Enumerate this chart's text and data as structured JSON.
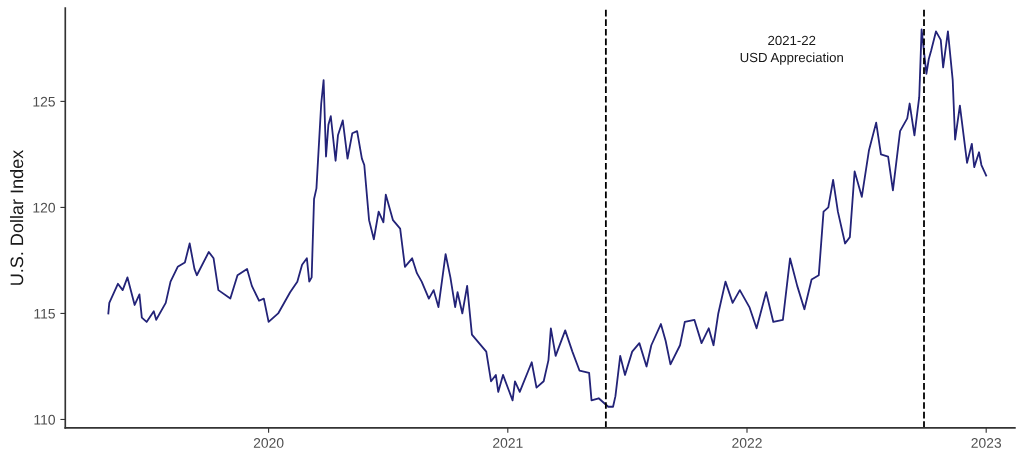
{
  "chart_data": {
    "type": "line",
    "ylabel": "U.S. Dollar Index",
    "annotations": [
      "2021-22\nUSD Appreciation"
    ],
    "xlim": [
      2019.15,
      2023.12
    ],
    "xticks": [
      2020,
      2021,
      2022,
      2023
    ],
    "ylim": [
      109.6,
      129.4
    ],
    "yticks": [
      110,
      115,
      120,
      125
    ],
    "grid": false,
    "line_style": "solid",
    "ref_lines": [
      {
        "axis": "x",
        "value": 2021.41,
        "line_style": "dashed",
        "color": "#000000"
      },
      {
        "axis": "x",
        "value": 2022.74,
        "line_style": "dashed",
        "color": "#000000"
      }
    ],
    "series": [
      {
        "color": "#232378",
        "x": [
          2019.33,
          2019.334,
          2019.37,
          2019.39,
          2019.41,
          2019.44,
          2019.46,
          2019.47,
          2019.49,
          2019.52,
          2019.53,
          2019.57,
          2019.59,
          2019.62,
          2019.65,
          2019.67,
          2019.69,
          2019.7,
          2019.75,
          2019.77,
          2019.79,
          2019.84,
          2019.87,
          2019.91,
          2019.93,
          2019.96,
          2019.98,
          2020.0,
          2020.04,
          2020.09,
          2020.12,
          2020.14,
          2020.16,
          2020.17,
          2020.18,
          2020.19,
          2020.2,
          2020.22,
          2020.23,
          2020.24,
          2020.25,
          2020.26,
          2020.28,
          2020.29,
          2020.31,
          2020.33,
          2020.35,
          2020.37,
          2020.39,
          2020.4,
          2020.42,
          2020.44,
          2020.46,
          2020.48,
          2020.49,
          2020.52,
          2020.55,
          2020.57,
          2020.6,
          2020.62,
          2020.64,
          2020.67,
          2020.69,
          2020.71,
          2020.74,
          2020.76,
          2020.78,
          2020.79,
          2020.81,
          2020.83,
          2020.85,
          2020.88,
          2020.91,
          2020.93,
          2020.95,
          2020.96,
          2020.98,
          2021.02,
          2021.03,
          2021.05,
          2021.1,
          2021.12,
          2021.15,
          2021.17,
          2021.18,
          2021.2,
          2021.24,
          2021.27,
          2021.3,
          2021.34,
          2021.35,
          2021.38,
          2021.42,
          2021.44,
          2021.45,
          2021.47,
          2021.49,
          2021.52,
          2021.55,
          2021.58,
          2021.6,
          2021.64,
          2021.66,
          2021.68,
          2021.72,
          2021.74,
          2021.78,
          2021.81,
          2021.84,
          2021.86,
          2021.88,
          2021.91,
          2021.94,
          2021.97,
          2022.01,
          2022.04,
          2022.08,
          2022.11,
          2022.15,
          2022.18,
          2022.21,
          2022.24,
          2022.27,
          2022.3,
          2022.32,
          2022.34,
          2022.36,
          2022.38,
          2022.41,
          2022.43,
          2022.45,
          2022.48,
          2022.51,
          2022.54,
          2022.56,
          2022.59,
          2022.61,
          2022.64,
          2022.67,
          2022.68,
          2022.7,
          2022.72,
          2022.73,
          2022.75,
          2022.76,
          2022.77,
          2022.79,
          2022.81,
          2022.82,
          2022.84,
          2022.86,
          2022.87,
          2022.89,
          2022.92,
          2022.94,
          2022.95,
          2022.97,
          2022.98,
          2023.0
        ],
        "values": [
          115.0,
          115.5,
          116.4,
          116.1,
          116.7,
          115.4,
          115.9,
          114.8,
          114.6,
          115.1,
          114.7,
          115.5,
          116.5,
          117.2,
          117.4,
          118.3,
          117.1,
          116.8,
          117.9,
          117.6,
          116.1,
          115.7,
          116.8,
          117.1,
          116.3,
          115.6,
          115.7,
          114.6,
          115.0,
          116.0,
          116.5,
          117.3,
          117.6,
          116.5,
          116.7,
          120.4,
          120.9,
          124.9,
          126.0,
          122.4,
          123.9,
          124.3,
          122.2,
          123.4,
          124.1,
          122.3,
          123.5,
          123.6,
          122.3,
          122.0,
          119.4,
          118.5,
          119.8,
          119.3,
          120.6,
          119.4,
          119.0,
          117.2,
          117.6,
          116.9,
          116.5,
          115.7,
          116.1,
          115.3,
          117.8,
          116.7,
          115.3,
          116.0,
          115.0,
          116.3,
          114.0,
          113.6,
          113.2,
          111.8,
          112.1,
          111.3,
          112.1,
          110.9,
          111.8,
          111.3,
          112.7,
          111.5,
          111.8,
          112.8,
          114.3,
          113.0,
          114.2,
          113.2,
          112.3,
          112.2,
          110.9,
          111.0,
          110.6,
          110.6,
          111.1,
          113.0,
          112.1,
          113.2,
          113.6,
          112.5,
          113.5,
          114.5,
          113.7,
          112.6,
          113.5,
          114.6,
          114.7,
          113.6,
          114.3,
          113.5,
          115.0,
          116.5,
          115.5,
          116.1,
          115.3,
          114.3,
          116.0,
          114.6,
          114.7,
          117.6,
          116.3,
          115.2,
          116.6,
          116.8,
          119.8,
          120.0,
          121.3,
          119.8,
          118.3,
          118.6,
          121.7,
          120.5,
          122.7,
          124.0,
          122.5,
          122.4,
          120.8,
          123.6,
          124.2,
          124.9,
          123.4,
          125.2,
          128.4,
          126.3,
          127.0,
          127.4,
          128.3,
          127.9,
          126.6,
          128.3,
          126.0,
          123.2,
          124.8,
          122.1,
          123.0,
          121.9,
          122.6,
          122.0,
          121.5
        ]
      }
    ]
  }
}
